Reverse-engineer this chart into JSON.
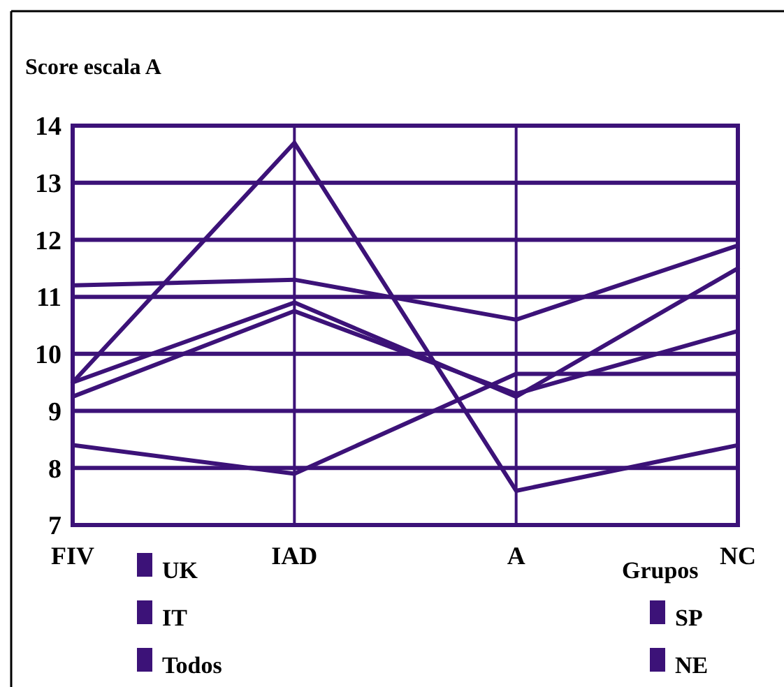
{
  "chart_data": {
    "type": "line",
    "ylabel": "Score escala A",
    "legend_title": "Grupos",
    "categories": [
      "FIV",
      "IAD",
      "A",
      "NC"
    ],
    "series": [
      {
        "name": "UK",
        "color": "#3c1278",
        "values": [
          9.5,
          13.7,
          7.6,
          8.4
        ]
      },
      {
        "name": "IT",
        "color": "#3c1278",
        "values": [
          11.2,
          11.3,
          10.6,
          11.9
        ]
      },
      {
        "name": "Todos",
        "color": "#3c1278",
        "values": [
          9.5,
          10.9,
          9.25,
          11.5
        ]
      },
      {
        "name": "SP",
        "color": "#3c1278",
        "values": [
          9.25,
          10.75,
          9.3,
          10.4
        ]
      },
      {
        "name": "NE",
        "color": "#3c1278",
        "values": [
          8.4,
          7.9,
          9.65,
          9.65
        ]
      }
    ],
    "ylim": [
      7,
      14
    ],
    "yticks": [
      7,
      8,
      9,
      10,
      11,
      12,
      13,
      14
    ],
    "grid": true,
    "legend": "bottom",
    "marker": "none",
    "line_style": "solid"
  }
}
